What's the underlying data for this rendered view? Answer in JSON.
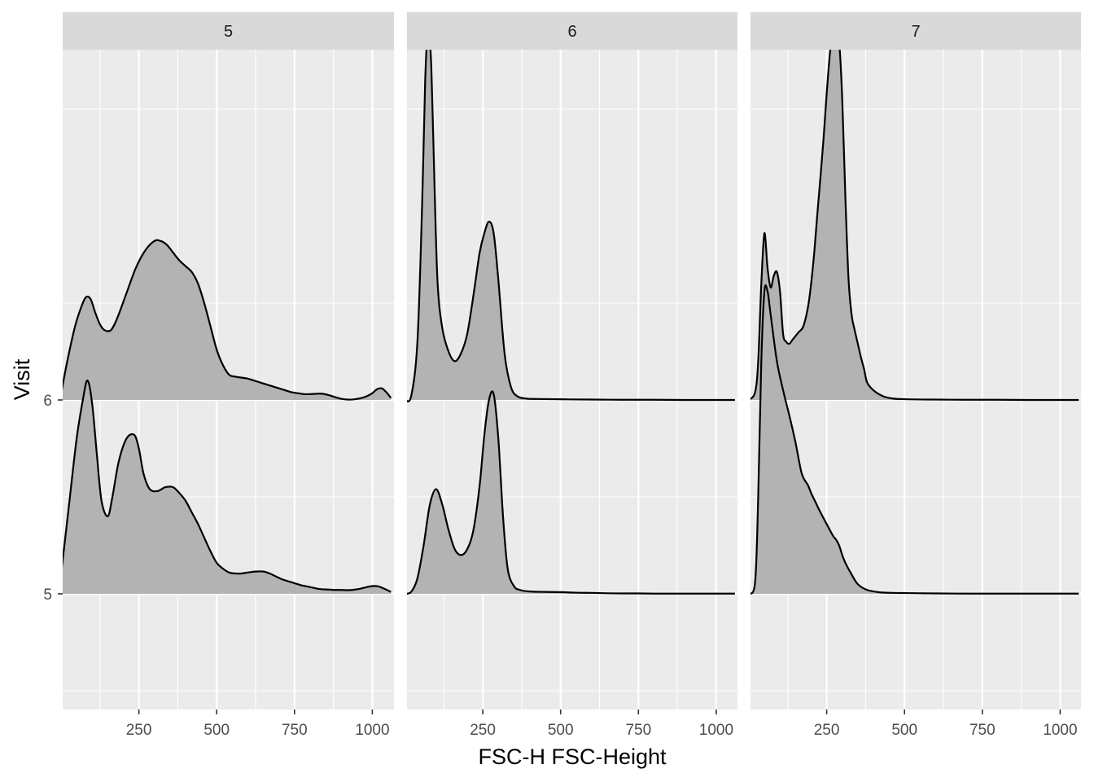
{
  "chart_data": {
    "type": "ridgeline-density",
    "facet_variable": "panel",
    "xlabel": "FSC-H FSC-Height",
    "ylabel": "Visit",
    "x_ticks": [
      250,
      500,
      750,
      1000
    ],
    "y_ticks": [
      "5",
      "6"
    ],
    "x_range_per_panel": [
      [
        0,
        1060
      ],
      [
        0,
        1060
      ],
      [
        0,
        1060
      ]
    ],
    "y_range": [
      4.4,
      7.8
    ],
    "ridge_height": 1.8,
    "fill_color": "#b3b3b3",
    "line_color": "#000000",
    "panel_bg_color": "#ebebeb",
    "strip_bg_color": "#d9d9d9",
    "grid_color": "#ffffff",
    "panels": [
      {
        "label": "5",
        "ridges": [
          {
            "visit": "5",
            "x": [
              0,
              25,
              50,
              70,
              85,
              100,
              115,
              130,
              150,
              165,
              185,
              210,
              235,
              250,
              265,
              285,
              310,
              335,
              360,
              380,
              400,
              420,
              440,
              460,
              480,
              500,
              520,
              540,
              560,
              580,
              600,
              625,
              650,
              670,
              690,
              710,
              740,
              770,
              800,
              830,
              860,
              880,
              900,
              920,
              940,
              960,
              980,
              1000,
              1020,
              1040,
              1060
            ],
            "y": [
              0.1,
              0.45,
              0.8,
              1.0,
              1.1,
              0.98,
              0.72,
              0.48,
              0.4,
              0.5,
              0.68,
              0.8,
              0.82,
              0.75,
              0.62,
              0.54,
              0.53,
              0.55,
              0.55,
              0.52,
              0.48,
              0.42,
              0.36,
              0.29,
              0.22,
              0.16,
              0.13,
              0.11,
              0.105,
              0.105,
              0.11,
              0.115,
              0.115,
              0.105,
              0.09,
              0.075,
              0.06,
              0.045,
              0.035,
              0.025,
              0.022,
              0.02,
              0.02,
              0.019,
              0.021,
              0.026,
              0.034,
              0.04,
              0.038,
              0.025,
              0.01
            ]
          },
          {
            "visit": "6",
            "x": [
              0,
              20,
              45,
              65,
              80,
              95,
              110,
              125,
              140,
              160,
              180,
              210,
              240,
              270,
              300,
              320,
              340,
              360,
              380,
              400,
              420,
              440,
              460,
              480,
              500,
              520,
              540,
              560,
              580,
              600,
              620,
              640,
              660,
              680,
              700,
              720,
              740,
              760,
              780,
              800,
              820,
              840,
              860,
              880,
              900,
              920,
              940,
              960,
              980,
              1000,
              1015,
              1030,
              1045,
              1060
            ],
            "y": [
              0.03,
              0.2,
              0.38,
              0.48,
              0.53,
              0.52,
              0.45,
              0.39,
              0.36,
              0.36,
              0.42,
              0.55,
              0.68,
              0.77,
              0.82,
              0.82,
              0.8,
              0.76,
              0.72,
              0.69,
              0.66,
              0.6,
              0.5,
              0.38,
              0.26,
              0.18,
              0.13,
              0.12,
              0.115,
              0.11,
              0.1,
              0.09,
              0.08,
              0.07,
              0.06,
              0.05,
              0.04,
              0.035,
              0.03,
              0.03,
              0.032,
              0.032,
              0.025,
              0.015,
              0.006,
              0.002,
              0.003,
              0.008,
              0.018,
              0.035,
              0.055,
              0.06,
              0.04,
              0.01
            ]
          }
        ]
      },
      {
        "label": "6",
        "ridges": [
          {
            "visit": "5",
            "x": [
              0,
              20,
              40,
              60,
              80,
              100,
              120,
              140,
              160,
              180,
              200,
              220,
              240,
              255,
              270,
              285,
              300,
              315,
              330,
              350,
              370,
              400,
              450,
              500,
              550,
              600,
              650,
              700,
              750,
              800,
              850,
              900,
              950,
              1000,
              1060
            ],
            "y": [
              0.0,
              0.01,
              0.08,
              0.25,
              0.46,
              0.54,
              0.46,
              0.33,
              0.23,
              0.2,
              0.23,
              0.33,
              0.56,
              0.82,
              1.0,
              1.03,
              0.8,
              0.4,
              0.13,
              0.04,
              0.02,
              0.012,
              0.01,
              0.009,
              0.006,
              0.005,
              0.003,
              0.002,
              0.002,
              0.001,
              0.001,
              0.001,
              0.001,
              0.001,
              0.001
            ]
          },
          {
            "visit": "6",
            "x": [
              0,
              20,
              40,
              55,
              65,
              75,
              85,
              95,
              105,
              120,
              140,
              160,
              180,
              200,
              220,
              240,
              255,
              270,
              285,
              300,
              320,
              340,
              360,
              390,
              430,
              480,
              530,
              600,
              700,
              800,
              900,
              1000,
              1060
            ],
            "y": [
              0.0,
              0.02,
              0.3,
              1.0,
              1.65,
              1.92,
              1.7,
              1.1,
              0.6,
              0.37,
              0.25,
              0.2,
              0.24,
              0.34,
              0.54,
              0.76,
              0.86,
              0.92,
              0.86,
              0.62,
              0.24,
              0.07,
              0.02,
              0.007,
              0.005,
              0.004,
              0.003,
              0.002,
              0.001,
              0.001,
              0.0,
              0.0,
              0.0
            ]
          }
        ]
      },
      {
        "label": "7",
        "ridges": [
          {
            "visit": "5",
            "x": [
              0,
              20,
              30,
              40,
              50,
              60,
              70,
              90,
              110,
              130,
              150,
              170,
              190,
              200,
              215,
              230,
              250,
              270,
              280,
              290,
              300,
              310,
              330,
              350,
              380,
              420,
              460,
              500,
              550,
              600,
              700,
              800,
              900,
              1000,
              1060
            ],
            "y": [
              0.0,
              0.06,
              0.5,
              1.2,
              1.56,
              1.56,
              1.44,
              1.2,
              1.05,
              0.92,
              0.78,
              0.62,
              0.56,
              0.52,
              0.47,
              0.42,
              0.36,
              0.3,
              0.28,
              0.25,
              0.2,
              0.16,
              0.1,
              0.05,
              0.02,
              0.008,
              0.005,
              0.004,
              0.003,
              0.002,
              0.001,
              0.001,
              0.001,
              0.001,
              0.001
            ]
          },
          {
            "visit": "6",
            "x": [
              0,
              20,
              30,
              40,
              50,
              60,
              70,
              80,
              90,
              100,
              110,
              120,
              130,
              140,
              150,
              160,
              175,
              190,
              200,
              210,
              220,
              230,
              240,
              250,
              260,
              270,
              280,
              290,
              300,
              310,
              320,
              330,
              340,
              350,
              360,
              370,
              380,
              400,
              430,
              460,
              500,
              600,
              700,
              800,
              900,
              1000,
              1060
            ],
            "y": [
              0.0,
              0.04,
              0.2,
              0.6,
              0.86,
              0.68,
              0.58,
              0.64,
              0.66,
              0.56,
              0.34,
              0.3,
              0.29,
              0.31,
              0.33,
              0.35,
              0.38,
              0.48,
              0.6,
              0.76,
              0.96,
              1.15,
              1.35,
              1.58,
              1.78,
              1.9,
              1.93,
              1.85,
              1.55,
              1.05,
              0.63,
              0.44,
              0.36,
              0.29,
              0.22,
              0.16,
              0.09,
              0.05,
              0.02,
              0.008,
              0.004,
              0.002,
              0.001,
              0.001,
              0.0,
              0.0,
              0.0
            ]
          }
        ]
      }
    ]
  }
}
